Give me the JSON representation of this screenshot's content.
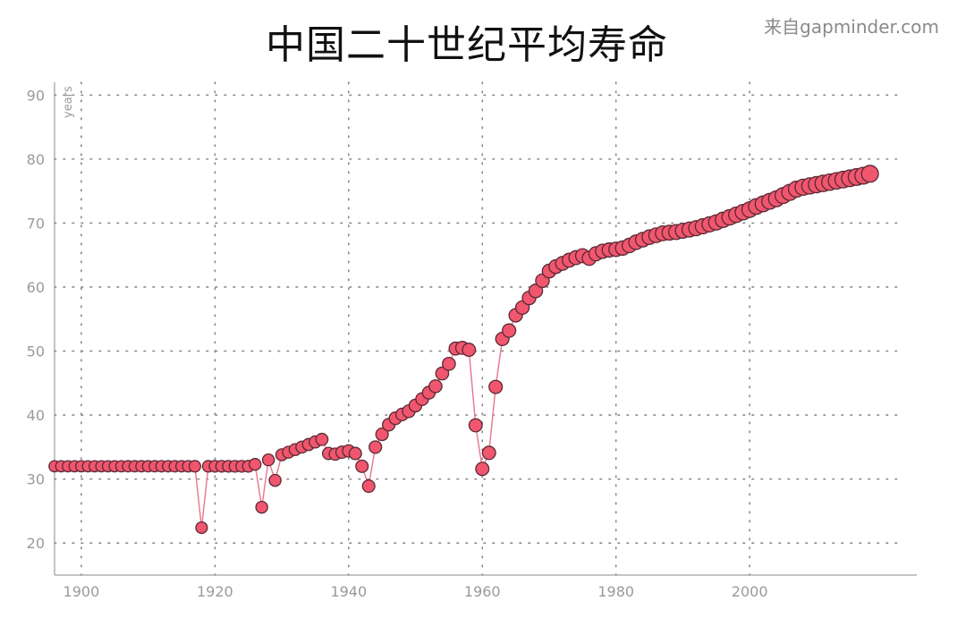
{
  "header": {
    "title": "中国二十世纪平均寿命",
    "source": "来自gapminder.com"
  },
  "colors": {
    "marker_fill": "#f0566e",
    "marker_stroke": "#5a2a34",
    "line": "#e8768a",
    "grid": "#888888",
    "axis": "#888888",
    "tick_text": "#9a9a9a"
  },
  "chart_data": {
    "type": "scatter",
    "title": "中国二十世纪平均寿命",
    "xlabel": "",
    "ylabel": "years",
    "xlim": [
      1896,
      2025
    ],
    "ylim": [
      15,
      92
    ],
    "x_ticks": [
      1900,
      1920,
      1940,
      1960,
      1980,
      2000
    ],
    "y_ticks": [
      20,
      30,
      40,
      50,
      60,
      70,
      80,
      90
    ],
    "grid": true,
    "connected_line": true,
    "marker_size_grows_with_time": true,
    "series": [
      {
        "x": [
          1896,
          1897,
          1898,
          1899,
          1900,
          1901,
          1902,
          1903,
          1904,
          1905,
          1906,
          1907,
          1908,
          1909,
          1910,
          1911,
          1912,
          1913,
          1914,
          1915,
          1916,
          1917,
          1918,
          1919,
          1920,
          1921,
          1922,
          1923,
          1924,
          1925,
          1926,
          1927,
          1928,
          1929,
          1930,
          1931,
          1932,
          1933,
          1934,
          1935,
          1936,
          1937,
          1938,
          1939,
          1940,
          1941,
          1942,
          1943,
          1944,
          1945,
          1946,
          1947,
          1948,
          1949,
          1950,
          1951,
          1952,
          1953,
          1954,
          1955,
          1956,
          1957,
          1958,
          1959,
          1960,
          1961,
          1962,
          1963,
          1964,
          1965,
          1966,
          1967,
          1968,
          1969,
          1970,
          1971,
          1972,
          1973,
          1974,
          1975,
          1976,
          1977,
          1978,
          1979,
          1980,
          1981,
          1982,
          1983,
          1984,
          1985,
          1986,
          1987,
          1988,
          1989,
          1990,
          1991,
          1992,
          1993,
          1994,
          1995,
          1996,
          1997,
          1998,
          1999,
          2000,
          2001,
          2002,
          2003,
          2004,
          2005,
          2006,
          2007,
          2008,
          2009,
          2010,
          2011,
          2012,
          2013,
          2014,
          2015,
          2016,
          2017,
          2018
        ],
        "y": [
          32,
          32,
          32,
          32,
          32,
          32,
          32,
          32,
          32,
          32,
          32,
          32,
          32,
          32,
          32,
          32,
          32,
          32,
          32,
          32,
          32,
          32,
          22.4,
          32,
          32,
          32,
          32,
          32,
          32,
          32,
          32.3,
          25.6,
          33,
          29.8,
          33.8,
          34.2,
          34.6,
          35,
          35.4,
          35.8,
          36.2,
          34,
          33.9,
          34.2,
          34.4,
          34,
          32,
          28.9,
          35,
          37,
          38.5,
          39.5,
          40.1,
          40.6,
          41.5,
          42.5,
          43.5,
          44.5,
          46.5,
          48,
          50.4,
          50.5,
          50.2,
          38.4,
          31.6,
          34.1,
          44.4,
          51.9,
          53.2,
          55.6,
          56.8,
          58.3,
          59.4,
          61,
          62.5,
          63.2,
          63.7,
          64.2,
          64.6,
          64.9,
          64.5,
          65.2,
          65.6,
          65.8,
          65.9,
          66.1,
          66.5,
          67,
          67.4,
          67.8,
          68.1,
          68.4,
          68.5,
          68.6,
          68.8,
          69,
          69.2,
          69.5,
          69.8,
          70.1,
          70.5,
          70.9,
          71.3,
          71.7,
          72.1,
          72.6,
          73,
          73.4,
          73.8,
          74.3,
          74.8,
          75.3,
          75.6,
          75.8,
          76,
          76.2,
          76.4,
          76.6,
          76.8,
          77,
          77.2,
          77.4,
          77.7
        ]
      }
    ]
  }
}
